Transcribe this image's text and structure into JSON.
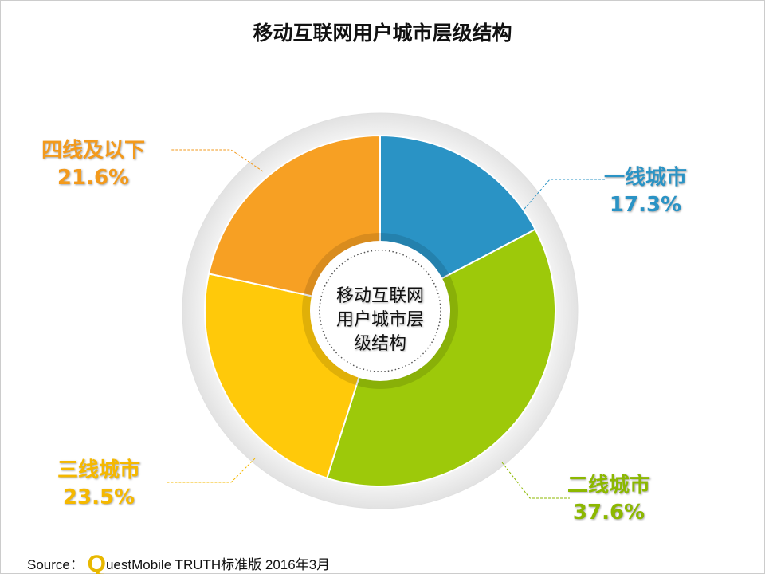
{
  "chart_data": {
    "type": "pie",
    "title": "移动互联网用户城市层级结构",
    "center_label": "移动互联网用户城市层级结构",
    "center_lines": [
      "移动互联网",
      "用户城市层",
      "级结构"
    ],
    "unit": "%",
    "categories": [
      "一线城市",
      "二线城市",
      "三线城市",
      "四线及以下"
    ],
    "values": [
      17.3,
      37.6,
      23.5,
      21.6
    ],
    "value_labels": [
      "17.3%",
      "37.6%",
      "23.5%",
      "21.6%"
    ],
    "colors": [
      "#2a93c5",
      "#9dc90a",
      "#ffc90a",
      "#f7a023"
    ],
    "label_colors": [
      "#2a93c5",
      "#8cb800",
      "#f5b800",
      "#f39a1c"
    ],
    "donut": true,
    "start": "12 o'clock, clockwise"
  },
  "source": {
    "prefix": "Source：",
    "logo_letter": "Q",
    "text": "uestMobile TRUTH标准版 2016年3月"
  }
}
